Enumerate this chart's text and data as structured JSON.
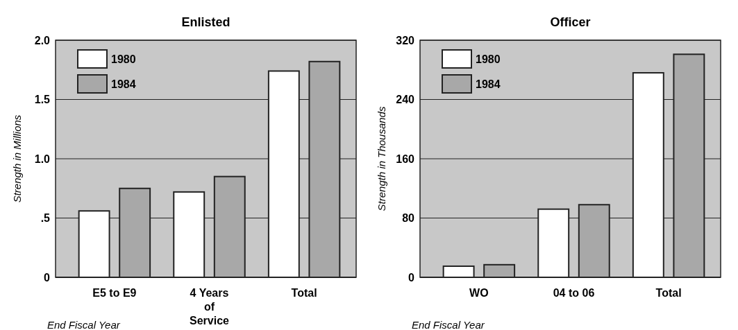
{
  "chart_data": [
    {
      "type": "bar",
      "title": "Enlisted",
      "ylabel": "Strength in Millions",
      "categories": [
        "E5 to E9",
        "4 Years of Service",
        "Total"
      ],
      "series": [
        {
          "name": "1980",
          "color": "#ffffff",
          "values": [
            0.56,
            0.72,
            1.74
          ]
        },
        {
          "name": "1984",
          "color": "#a8a8a8",
          "values": [
            0.75,
            0.85,
            1.82
          ]
        }
      ],
      "ylim": [
        0,
        2.0
      ],
      "yticks": [
        {
          "value": 0,
          "label": "0"
        },
        {
          "value": 0.5,
          "label": ".5"
        },
        {
          "value": 1.0,
          "label": "1.0"
        },
        {
          "value": 1.5,
          "label": "1.5"
        },
        {
          "value": 2.0,
          "label": "2.0"
        }
      ],
      "grid": "y",
      "legend": "top left",
      "annotations": [
        "End Fiscal Year"
      ]
    },
    {
      "type": "bar",
      "title": "Officer",
      "ylabel": "Strength in Thousands",
      "categories": [
        "WO",
        "04 to 06",
        "Total"
      ],
      "series": [
        {
          "name": "1980",
          "color": "#ffffff",
          "values": [
            15,
            92,
            276
          ]
        },
        {
          "name": "1984",
          "color": "#a8a8a8",
          "values": [
            17,
            98,
            301
          ]
        }
      ],
      "ylim": [
        0,
        320
      ],
      "yticks": [
        0,
        80,
        160,
        240,
        320
      ],
      "grid": "y",
      "legend": "top left",
      "annotations": [
        "End Fiscal Year"
      ]
    }
  ]
}
